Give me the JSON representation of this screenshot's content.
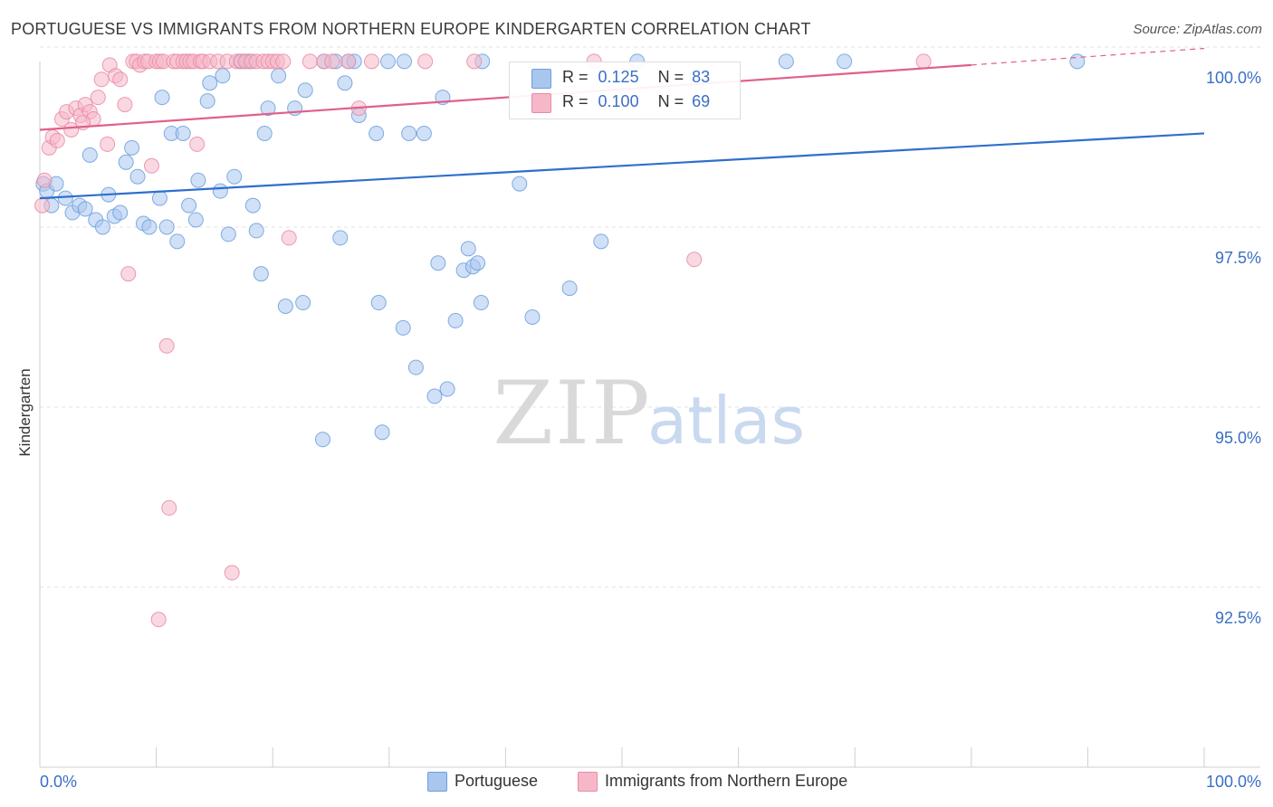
{
  "title": "PORTUGUESE VS IMMIGRANTS FROM NORTHERN EUROPE KINDERGARTEN CORRELATION CHART",
  "source": "Source: ZipAtlas.com",
  "watermark": {
    "zip": "ZIP",
    "atlas": "atlas"
  },
  "legend_stats": [
    {
      "r_label": "R =",
      "r_value": "0.125",
      "n_label": "N =",
      "n_value": "83",
      "color": "#a9c6ee",
      "border": "#6b9fdd"
    },
    {
      "r_label": "R =",
      "r_value": "0.100",
      "n_label": "N =",
      "n_value": "69",
      "color": "#f6b8c9",
      "border": "#e88aa5"
    }
  ],
  "chart_data": {
    "type": "scatter",
    "title": "PORTUGUESE VS IMMIGRANTS FROM NORTHERN EUROPE KINDERGARTEN CORRELATION CHART",
    "xlabel": "",
    "ylabel": "Kindergarten",
    "xlim": [
      0,
      100
    ],
    "ylim": [
      90.3,
      100.35
    ],
    "x_tick_labels": [
      {
        "value": 0,
        "label": "0.0%"
      },
      {
        "value": 100,
        "label": "100.0%"
      }
    ],
    "y_tick_labels": [
      {
        "value": 100,
        "label": "100.0%"
      },
      {
        "value": 97.5,
        "label": "97.5%"
      },
      {
        "value": 95,
        "label": "95.0%"
      },
      {
        "value": 92.5,
        "label": "92.5%"
      }
    ],
    "x_minor_ticks": [
      0,
      10,
      20,
      30,
      40,
      50,
      60,
      70,
      80,
      90,
      100
    ],
    "y_gridlines": [
      100.2,
      97.7,
      95.2,
      92.7
    ],
    "series": [
      {
        "name": "Portuguese",
        "color": "#a9c6ee",
        "stroke": "#6b9fdd",
        "trend": {
          "x0": 0,
          "y0": 98.1,
          "x1": 100,
          "y1": 99.0,
          "color": "#2f6fcc"
        },
        "points": [
          [
            0.3,
            98.3
          ],
          [
            0.6,
            98.2
          ],
          [
            1.0,
            98.0
          ],
          [
            1.4,
            98.3
          ],
          [
            2.2,
            98.1
          ],
          [
            2.8,
            97.9
          ],
          [
            3.4,
            98.0
          ],
          [
            3.9,
            97.95
          ],
          [
            4.3,
            98.7
          ],
          [
            4.8,
            97.8
          ],
          [
            5.4,
            97.7
          ],
          [
            5.9,
            98.15
          ],
          [
            6.4,
            97.85
          ],
          [
            6.9,
            97.9
          ],
          [
            7.4,
            98.6
          ],
          [
            7.9,
            98.8
          ],
          [
            8.4,
            98.4
          ],
          [
            8.9,
            97.75
          ],
          [
            9.4,
            97.7
          ],
          [
            10.3,
            98.1
          ],
          [
            10.5,
            99.5
          ],
          [
            10.9,
            97.7
          ],
          [
            11.3,
            99.0
          ],
          [
            11.8,
            97.5
          ],
          [
            12.3,
            99.0
          ],
          [
            12.8,
            98.0
          ],
          [
            13.4,
            97.8
          ],
          [
            13.6,
            98.35
          ],
          [
            14.4,
            99.45
          ],
          [
            14.6,
            99.7
          ],
          [
            15.5,
            98.2
          ],
          [
            15.7,
            99.8
          ],
          [
            16.2,
            97.6
          ],
          [
            16.7,
            98.4
          ],
          [
            17.2,
            100.0
          ],
          [
            17.6,
            100.0
          ],
          [
            18.0,
            100.0
          ],
          [
            18.3,
            98.0
          ],
          [
            18.6,
            97.65
          ],
          [
            19.0,
            97.05
          ],
          [
            19.3,
            99.0
          ],
          [
            19.6,
            99.35
          ],
          [
            20.5,
            99.8
          ],
          [
            21.1,
            96.6
          ],
          [
            21.9,
            99.35
          ],
          [
            22.6,
            96.65
          ],
          [
            22.8,
            99.6
          ],
          [
            24.3,
            94.75
          ],
          [
            24.4,
            100.0
          ],
          [
            25.4,
            100.0
          ],
          [
            25.8,
            97.55
          ],
          [
            26.2,
            99.7
          ],
          [
            26.5,
            100.0
          ],
          [
            27.0,
            100.0
          ],
          [
            27.4,
            99.25
          ],
          [
            28.9,
            99.0
          ],
          [
            29.1,
            96.65
          ],
          [
            29.4,
            94.85
          ],
          [
            29.9,
            100.0
          ],
          [
            31.2,
            96.3
          ],
          [
            31.3,
            100.0
          ],
          [
            31.7,
            99.0
          ],
          [
            32.3,
            95.75
          ],
          [
            33.0,
            99.0
          ],
          [
            33.9,
            95.35
          ],
          [
            34.2,
            97.2
          ],
          [
            34.6,
            99.5
          ],
          [
            35.0,
            95.45
          ],
          [
            35.7,
            96.4
          ],
          [
            36.4,
            97.1
          ],
          [
            36.8,
            97.4
          ],
          [
            37.2,
            97.15
          ],
          [
            37.6,
            97.2
          ],
          [
            37.9,
            96.65
          ],
          [
            38.0,
            100.0
          ],
          [
            41.2,
            98.3
          ],
          [
            42.3,
            96.45
          ],
          [
            45.5,
            96.85
          ],
          [
            48.2,
            97.5
          ],
          [
            51.3,
            100.0
          ],
          [
            64.1,
            100.0
          ],
          [
            69.1,
            100.0
          ],
          [
            89.1,
            100.0
          ]
        ]
      },
      {
        "name": "Immigrants from Northern Europe",
        "color": "#f6b8c9",
        "stroke": "#e88aa5",
        "trend": {
          "x0": 0,
          "y0": 99.05,
          "x1": 80,
          "y1": 99.95,
          "dash_to_x": 100,
          "dash_to_y": 100.18,
          "color": "#e0608a"
        },
        "points": [
          [
            0.2,
            98.0
          ],
          [
            0.4,
            98.35
          ],
          [
            0.8,
            98.8
          ],
          [
            1.1,
            98.95
          ],
          [
            1.5,
            98.9
          ],
          [
            1.9,
            99.2
          ],
          [
            2.3,
            99.3
          ],
          [
            2.7,
            99.05
          ],
          [
            3.1,
            99.35
          ],
          [
            3.5,
            99.25
          ],
          [
            3.9,
            99.4
          ],
          [
            4.3,
            99.3
          ],
          [
            4.6,
            99.2
          ],
          [
            5.0,
            99.5
          ],
          [
            5.3,
            99.75
          ],
          [
            5.8,
            98.85
          ],
          [
            6.0,
            99.95
          ],
          [
            6.5,
            99.8
          ],
          [
            6.9,
            99.75
          ],
          [
            7.3,
            99.4
          ],
          [
            7.6,
            97.05
          ],
          [
            8.0,
            100.0
          ],
          [
            8.3,
            100.0
          ],
          [
            8.6,
            99.95
          ],
          [
            9.0,
            100.0
          ],
          [
            9.3,
            100.0
          ],
          [
            9.6,
            98.55
          ],
          [
            10.0,
            100.0
          ],
          [
            10.3,
            100.0
          ],
          [
            10.6,
            100.0
          ],
          [
            10.9,
            96.05
          ],
          [
            11.1,
            93.8
          ],
          [
            11.5,
            100.0
          ],
          [
            11.8,
            100.0
          ],
          [
            12.3,
            100.0
          ],
          [
            12.6,
            100.0
          ],
          [
            12.9,
            100.0
          ],
          [
            13.2,
            100.0
          ],
          [
            13.5,
            98.85
          ],
          [
            13.8,
            100.0
          ],
          [
            14.0,
            100.0
          ],
          [
            14.6,
            100.0
          ],
          [
            15.3,
            100.0
          ],
          [
            16.1,
            100.0
          ],
          [
            16.5,
            92.9
          ],
          [
            16.9,
            100.0
          ],
          [
            17.3,
            100.0
          ],
          [
            17.7,
            100.0
          ],
          [
            18.2,
            100.0
          ],
          [
            18.6,
            100.0
          ],
          [
            19.2,
            100.0
          ],
          [
            19.6,
            100.0
          ],
          [
            20.0,
            100.0
          ],
          [
            20.4,
            100.0
          ],
          [
            20.9,
            100.0
          ],
          [
            21.4,
            97.55
          ],
          [
            23.2,
            100.0
          ],
          [
            24.4,
            100.0
          ],
          [
            25.1,
            100.0
          ],
          [
            26.5,
            100.0
          ],
          [
            27.4,
            99.35
          ],
          [
            28.5,
            100.0
          ],
          [
            33.1,
            100.0
          ],
          [
            37.3,
            100.0
          ],
          [
            47.6,
            100.0
          ],
          [
            56.2,
            97.25
          ],
          [
            75.9,
            100.0
          ],
          [
            10.2,
            92.25
          ],
          [
            3.7,
            99.15
          ]
        ]
      }
    ]
  },
  "bottom_legend": [
    {
      "label": "Portuguese",
      "color": "#a9c6ee",
      "border": "#6b9fdd"
    },
    {
      "label": "Immigrants from Northern Europe",
      "color": "#f6b8c9",
      "border": "#e88aa5"
    }
  ]
}
